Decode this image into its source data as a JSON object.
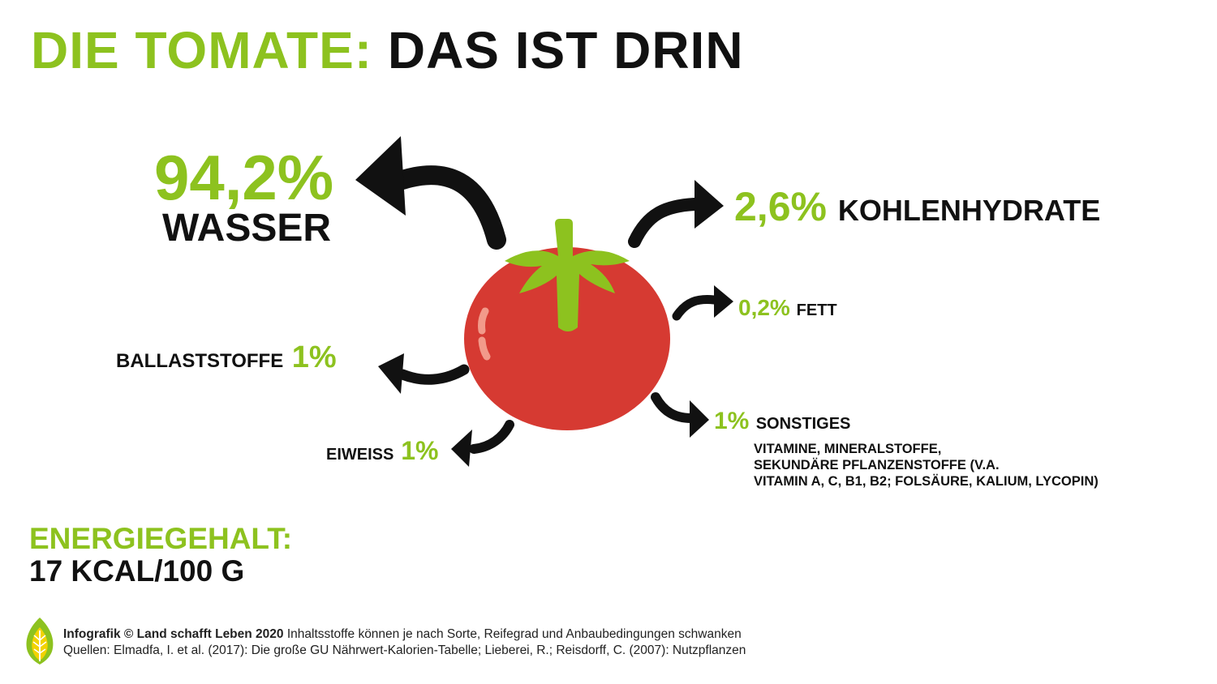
{
  "title": {
    "highlight": "DIE TOMATE:",
    "rest": "DAS IST DRIN"
  },
  "water": {
    "percent": "94,2%",
    "label": "WASSER",
    "value": 94.2
  },
  "carbohydrates": {
    "percent": "2,6%",
    "label": "KOHLENHYDRATE",
    "value": 2.6
  },
  "fat": {
    "percent": "0,2%",
    "label": "FETT",
    "value": 0.2
  },
  "fiber": {
    "label": "BALLASTSTOFFE",
    "percent": "1%",
    "value": 1
  },
  "protein": {
    "label": "EIWEISS",
    "percent": "1%",
    "value": 1
  },
  "other": {
    "percent": "1%",
    "label": "SONSTIGES",
    "value": 1,
    "details": [
      "VITAMINE, MINERALSTOFFE,",
      "SEKUNDÄRE PFLANZENSTOFFE (V.A.",
      "VITAMIN A, C, B1, B2; FOLSÄURE, KALIUM, LYCOPIN)"
    ]
  },
  "energy": {
    "label": "ENERGIEGEHALT:",
    "value": "17 KCAL/100 G"
  },
  "footer": {
    "credit_bold": "Infografik © Land schafft Leben 2020",
    "credit_text": " Inhaltsstoffe können je nach Sorte, Reifegrad und Anbaubedingungen schwanken",
    "sources": "Quellen: Elmadfa, I. et al. (2017): Die große GU Nährwert-Kalorien-Tabelle; Lieberei, R.; Reisdorff, C. (2007): Nutzpflanzen"
  },
  "colors": {
    "accent": "#8dc21f",
    "text": "#111111",
    "tomato": "#d63a32",
    "stem": "#8dc21f"
  },
  "icons": [
    "tomato-icon",
    "leaf-logo-icon",
    "curved-arrow-icon"
  ]
}
